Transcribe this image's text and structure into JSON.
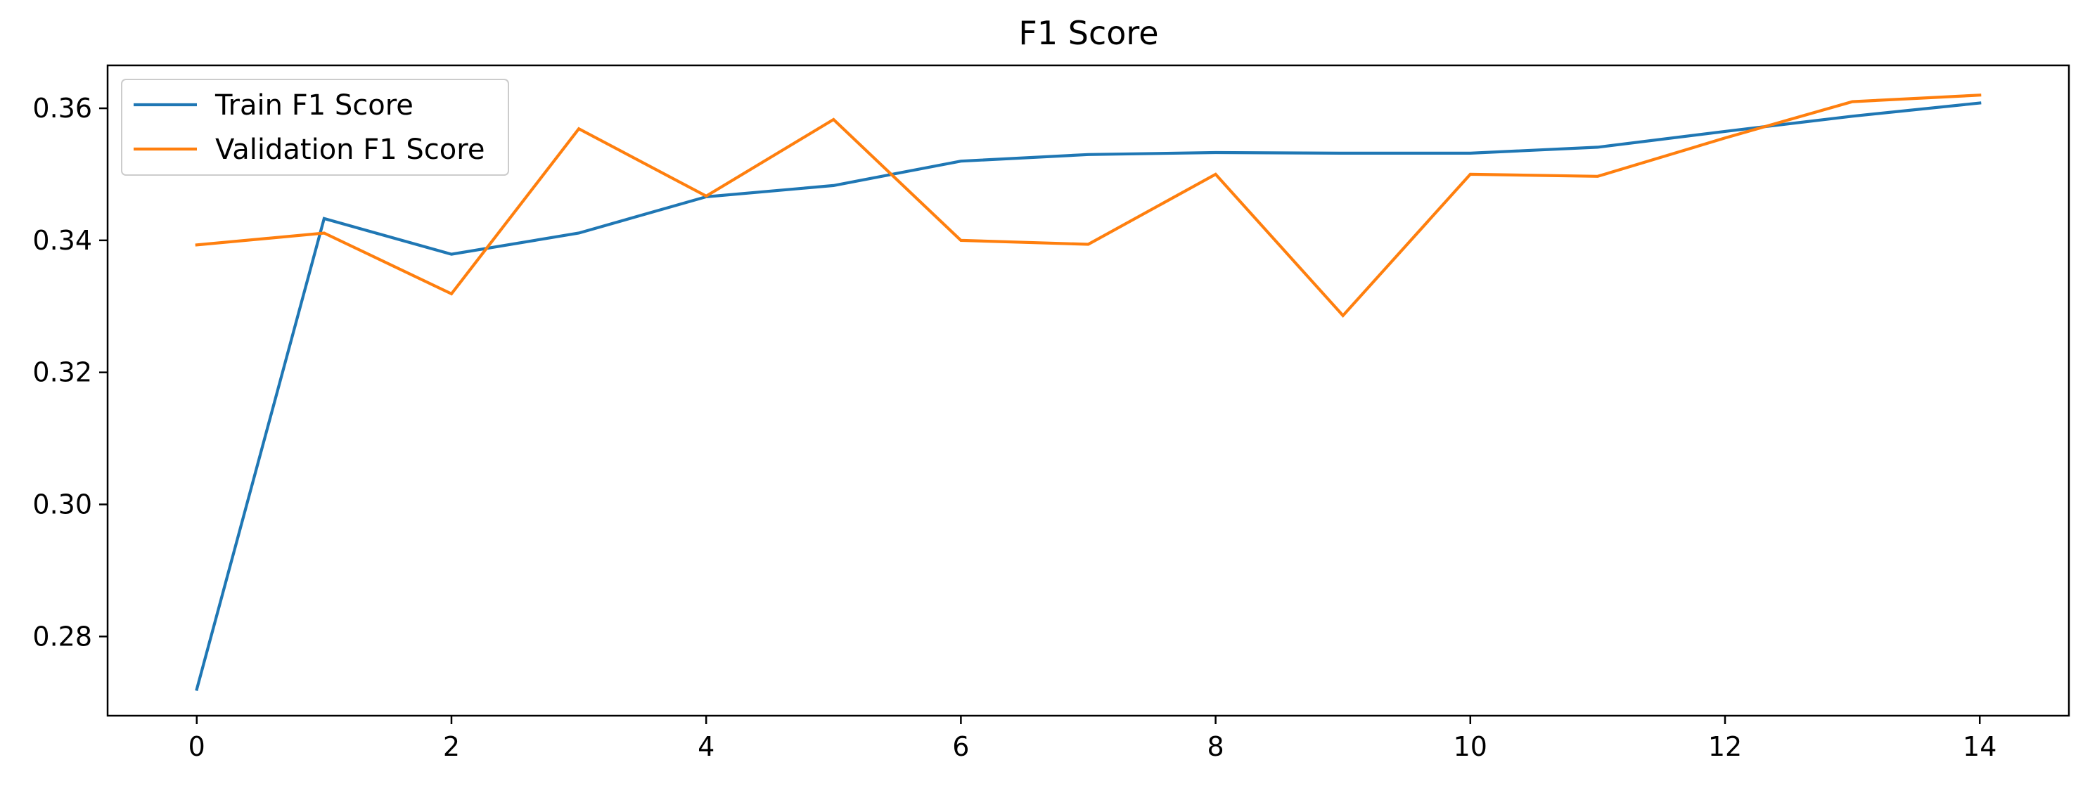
{
  "chart_data": {
    "type": "line",
    "title": "F1 Score",
    "xlabel": "",
    "ylabel": "",
    "xlim": [
      -0.7,
      14.7
    ],
    "ylim": [
      0.268,
      0.3665
    ],
    "xticks": [
      0,
      2,
      4,
      6,
      8,
      10,
      12,
      14
    ],
    "xtick_labels": [
      "0",
      "2",
      "4",
      "6",
      "8",
      "10",
      "12",
      "14"
    ],
    "yticks": [
      0.28,
      0.3,
      0.32,
      0.34,
      0.36
    ],
    "ytick_labels": [
      "0.28",
      "0.30",
      "0.32",
      "0.34",
      "0.36"
    ],
    "grid": false,
    "legend_position": "top-left",
    "x": [
      0,
      1,
      2,
      3,
      4,
      5,
      6,
      7,
      8,
      9,
      10,
      11,
      12,
      13,
      14
    ],
    "series": [
      {
        "name": "Train F1 Score",
        "color": "#1f77b4",
        "values": [
          0.272,
          0.3433,
          0.3379,
          0.3411,
          0.3466,
          0.3483,
          0.352,
          0.353,
          0.3533,
          0.3532,
          0.3532,
          0.3541,
          0.3565,
          0.3588,
          0.3608
        ]
      },
      {
        "name": "Validation F1 Score",
        "color": "#ff7f0e",
        "values": [
          0.3393,
          0.3411,
          0.3319,
          0.3569,
          0.3467,
          0.3583,
          0.34,
          0.3394,
          0.35,
          0.3286,
          0.35,
          0.3497,
          0.3555,
          0.361,
          0.362
        ]
      }
    ]
  }
}
